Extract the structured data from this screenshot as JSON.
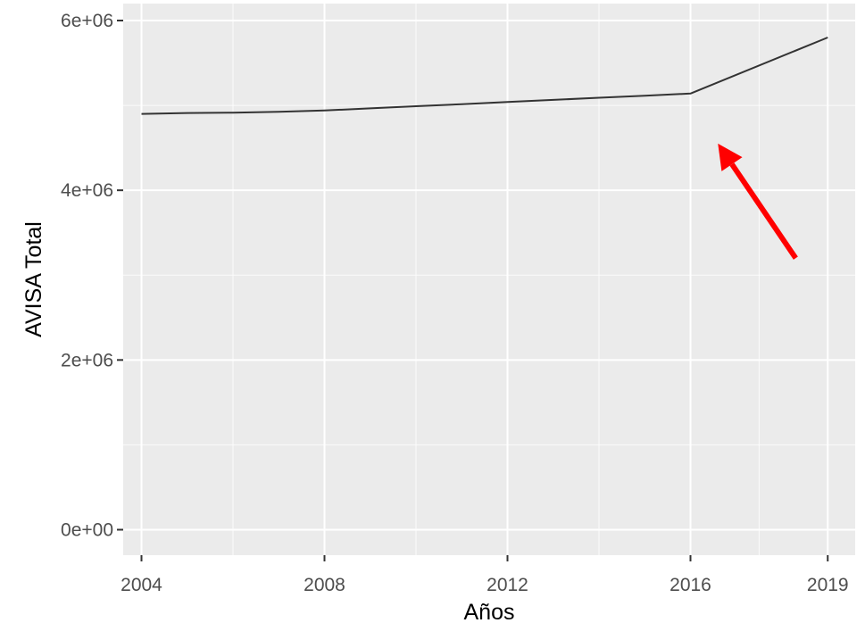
{
  "chart_data": {
    "type": "line",
    "xlabel": "Años",
    "ylabel": "AVISA Total",
    "xlim": [
      2003.6,
      2019.6
    ],
    "ylim": [
      -300000,
      6200000
    ],
    "x_ticks": [
      2004,
      2008,
      2012,
      2016,
      2019
    ],
    "x_tick_labels": [
      "2004",
      "2008",
      "2012",
      "2016",
      "2019"
    ],
    "x_minor_ticks": [
      2006,
      2010,
      2014,
      2017.5
    ],
    "y_ticks": [
      0,
      2000000,
      4000000,
      6000000
    ],
    "y_tick_labels": [
      "0e+00",
      "2e+06",
      "4e+06",
      "6e+06"
    ],
    "y_minor_ticks": [
      1000000,
      3000000,
      5000000
    ],
    "grid": true,
    "series": [
      {
        "x": [
          2004,
          2005,
          2006,
          2007,
          2008,
          2009,
          2010,
          2011,
          2012,
          2013,
          2014,
          2015,
          2016,
          2019
        ],
        "y": [
          4900000,
          4910000,
          4915000,
          4925000,
          4940000,
          4965000,
          4990000,
          5015000,
          5040000,
          5065000,
          5090000,
          5115000,
          5140000,
          5800000
        ]
      }
    ],
    "annotation": {
      "type": "arrow",
      "color": "#ff0000",
      "from": [
        2018.3,
        3200000
      ],
      "to": [
        2016.6,
        4550000
      ]
    },
    "colors": {
      "panel": "#ebebeb",
      "grid_major": "#ffffff",
      "line": "#333333"
    }
  }
}
